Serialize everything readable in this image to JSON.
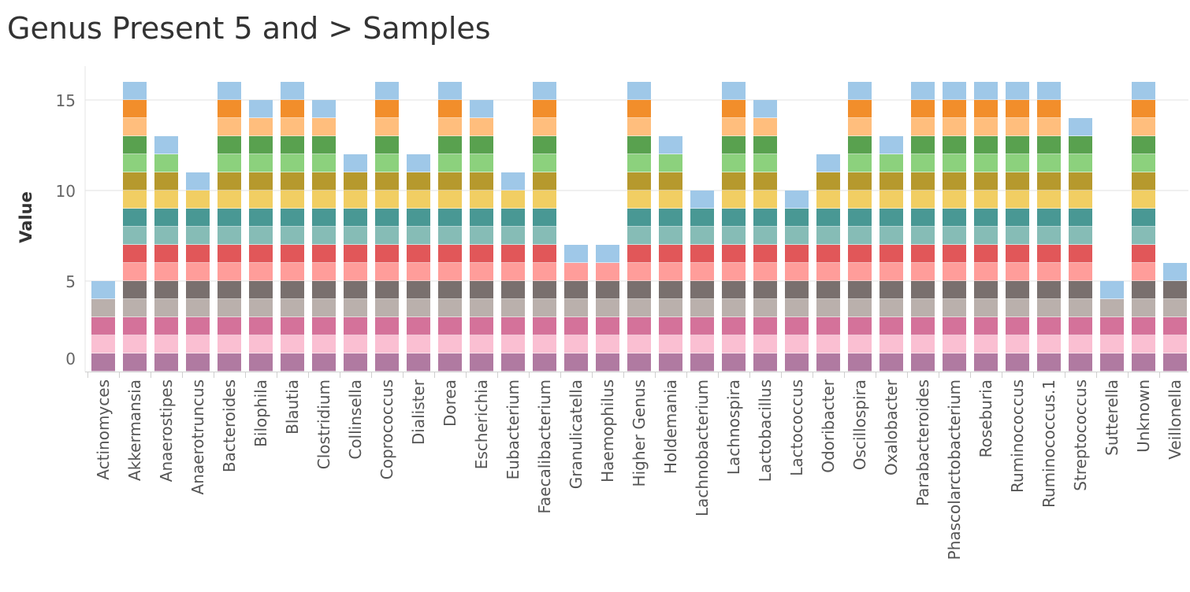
{
  "chart_data": {
    "type": "bar",
    "stacked": true,
    "title": "Genus Present 5 and > Samples",
    "xlabel": "",
    "ylabel": "Value",
    "ylim": [
      0,
      16.5
    ],
    "yticks": [
      0,
      5,
      10,
      15
    ],
    "grid": true,
    "categories": [
      "Actinomyces",
      "Akkermansia",
      "Anaerostipes",
      "Anaerotruncus",
      "Bacteroides",
      "Bilophila",
      "Blautia",
      "Clostridium",
      "Collinsella",
      "Coprococcus",
      "Dialister",
      "Dorea",
      "Escherichia",
      "Eubacterium",
      "Faecalibacterium",
      "Granulicatella",
      "Haemophilus",
      "Higher Genus",
      "Holdemania",
      "Lachnobacterium",
      "Lachnospira",
      "Lactobacillus",
      "Lactococcus",
      "Odoribacter",
      "Oscillospira",
      "Oxalobacter",
      "Parabacteroides",
      "Phascolarctobacterium",
      "Roseburia",
      "Ruminococcus",
      "Ruminococcus.1",
      "Streptococcus",
      "Sutterella",
      "Unknown",
      "Veillonella"
    ],
    "values": [
      5,
      16,
      13,
      11,
      16,
      15,
      16,
      15,
      12,
      16,
      12,
      16,
      15,
      11,
      16,
      7,
      7,
      16,
      13,
      10,
      16,
      15,
      10,
      12,
      16,
      13,
      16,
      16,
      16,
      16,
      16,
      14,
      5,
      16,
      6
    ],
    "segment_colors": [
      "#b07aa1",
      "#fabfd2",
      "#d4729a",
      "#bab0ac",
      "#79706e",
      "#ff9d9a",
      "#e15759",
      "#86bcb6",
      "#499894",
      "#f1ce63",
      "#b6992d",
      "#8cd17d",
      "#59a14f",
      "#ffbe7d",
      "#f28e2b",
      "#9fc8e8"
    ],
    "segment_value": 1
  }
}
